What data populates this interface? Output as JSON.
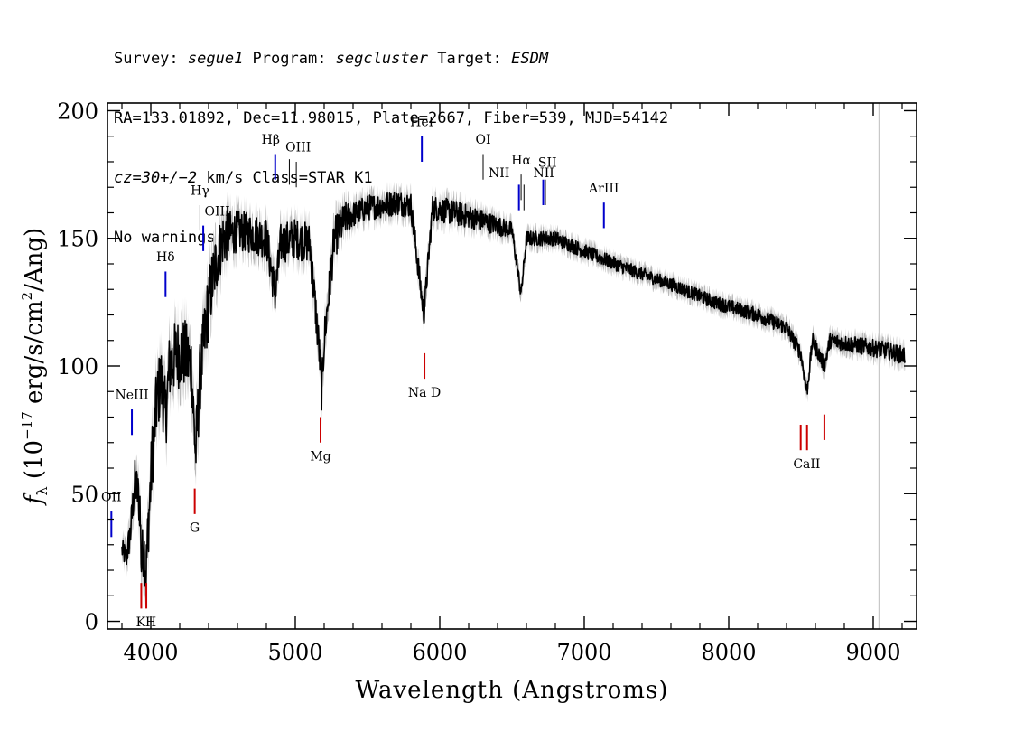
{
  "header": {
    "line1": {
      "survey_label": "Survey: ",
      "survey": "segue1",
      "program_label": " Program: ",
      "program": "segcluster",
      "target_label": " Target: ",
      "target": "ESDM"
    },
    "line2": "RA=133.01892, Dec=11.98015, Plate=2667, Fiber=539, MJD=54142",
    "line3": {
      "cz": "cz=30+/−2",
      "rest": " km/s Class=STAR K1"
    },
    "line4": "No warnings."
  },
  "chart_data": {
    "type": "line",
    "title": "",
    "xlabel": "Wavelength (Angstroms)",
    "ylabel_main": "f",
    "ylabel_sub": "λ",
    "ylabel_unit_a": " (10",
    "ylabel_exp": "−17",
    "ylabel_unit_b": " erg/s/cm",
    "ylabel_exp2": "2",
    "ylabel_unit_c": "/Ang)",
    "xlim": [
      3700,
      9300
    ],
    "ylim": [
      -3,
      203
    ],
    "x_ticks": [
      4000,
      5000,
      6000,
      7000,
      8000,
      9000
    ],
    "y_ticks": [
      0,
      50,
      100,
      150,
      200
    ],
    "grid": false,
    "series_color": "#000000",
    "error_color": "#b8b8b8",
    "vertical_marker": {
      "x": 9040,
      "color": "#c8c8c8"
    },
    "spectrum_anchors": [
      [
        3800,
        28
      ],
      [
        3830,
        25
      ],
      [
        3860,
        35
      ],
      [
        3890,
        55
      ],
      [
        3910,
        50
      ],
      [
        3925,
        45
      ],
      [
        3935,
        22
      ],
      [
        3950,
        30
      ],
      [
        3968,
        20
      ],
      [
        3985,
        40
      ],
      [
        4010,
        65
      ],
      [
        4040,
        85
      ],
      [
        4070,
        95
      ],
      [
        4102,
        80
      ],
      [
        4130,
        100
      ],
      [
        4180,
        105
      ],
      [
        4230,
        105
      ],
      [
        4280,
        100
      ],
      [
        4310,
        65
      ],
      [
        4340,
        95
      ],
      [
        4370,
        110
      ],
      [
        4400,
        125
      ],
      [
        4450,
        140
      ],
      [
        4500,
        150
      ],
      [
        4600,
        153
      ],
      [
        4700,
        152
      ],
      [
        4800,
        150
      ],
      [
        4861,
        128
      ],
      [
        4900,
        148
      ],
      [
        5000,
        150
      ],
      [
        5100,
        148
      ],
      [
        5167,
        105
      ],
      [
        5183,
        90
      ],
      [
        5200,
        110
      ],
      [
        5270,
        150
      ],
      [
        5350,
        158
      ],
      [
        5500,
        162
      ],
      [
        5700,
        164
      ],
      [
        5800,
        163
      ],
      [
        5890,
        120
      ],
      [
        5950,
        162
      ],
      [
        6100,
        160
      ],
      [
        6300,
        157
      ],
      [
        6500,
        153
      ],
      [
        6563,
        128
      ],
      [
        6600,
        150
      ],
      [
        6800,
        150
      ],
      [
        7000,
        145
      ],
      [
        7300,
        138
      ],
      [
        7600,
        132
      ],
      [
        7900,
        125
      ],
      [
        8200,
        120
      ],
      [
        8400,
        115
      ],
      [
        8498,
        105
      ],
      [
        8542,
        90
      ],
      [
        8580,
        110
      ],
      [
        8662,
        100
      ],
      [
        8700,
        110
      ],
      [
        8900,
        108
      ],
      [
        9100,
        106
      ],
      [
        9220,
        104
      ]
    ],
    "noise": [
      [
        3800,
        4
      ],
      [
        4000,
        14
      ],
      [
        4400,
        14
      ],
      [
        4600,
        8
      ],
      [
        5300,
        8
      ],
      [
        5400,
        5
      ],
      [
        6100,
        5
      ],
      [
        6600,
        3
      ],
      [
        7500,
        2.5
      ],
      [
        8500,
        3
      ],
      [
        9220,
        3.5
      ]
    ],
    "line_marks": [
      {
        "label": "OII",
        "x": 3727,
        "y0": 33,
        "y1": 43,
        "color": "#0000cc",
        "lx": 3727,
        "ly": 47
      },
      {
        "label": "NeIII",
        "x": 3869,
        "y0": 73,
        "y1": 83,
        "color": "#0000cc",
        "lx": 3869,
        "ly": 87
      },
      {
        "label": "Hδ",
        "x": 4102,
        "y0": 127,
        "y1": 137,
        "color": "#0000cc",
        "lx": 4102,
        "ly": 141
      },
      {
        "label": "Hγ",
        "x": 4340,
        "y0": 153,
        "y1": 163,
        "color": "#000000",
        "lx": 4340,
        "ly": 167
      },
      {
        "label": "OIII",
        "x": 4363,
        "y0": 145,
        "y1": 155,
        "color": "#0000cc",
        "lx": 4460,
        "ly": 159
      },
      {
        "label": "Hβ",
        "x": 4861,
        "y0": 173,
        "y1": 183,
        "color": "#0000cc",
        "lx": 4830,
        "ly": 187
      },
      {
        "label": "OIII",
        "x": 4959,
        "y0": 171,
        "y1": 181,
        "color": "#000000",
        "lx": 5020,
        "ly": 184
      },
      {
        "label": "OIII",
        "x": 5007,
        "y0": 170,
        "y1": 180,
        "color": "#000000",
        "lx": null,
        "ly": null
      },
      {
        "label": "HeI",
        "x": 5876,
        "y0": 180,
        "y1": 190,
        "color": "#0000cc",
        "lx": 5876,
        "ly": 194
      },
      {
        "label": "OI",
        "x": 6300,
        "y0": 173,
        "y1": 183,
        "color": "#000000",
        "lx": 6300,
        "ly": 187
      },
      {
        "label": "NII",
        "x": 6548,
        "y0": 161,
        "y1": 171,
        "color": "#0000cc",
        "lx": 6410,
        "ly": 174
      },
      {
        "label": "Hα",
        "x": 6563,
        "y0": 165,
        "y1": 175,
        "color": "#000000",
        "lx": 6563,
        "ly": 179
      },
      {
        "label": "NII",
        "x": 6583,
        "y0": 161,
        "y1": 171,
        "color": "#000000",
        "lx": 6720,
        "ly": 174
      },
      {
        "label": "SII",
        "x": 6716,
        "y0": 163,
        "y1": 173,
        "color": "#0000cc",
        "lx": 6745,
        "ly": 178
      },
      {
        "label": "SII",
        "x": 6731,
        "y0": 163,
        "y1": 173,
        "color": "#000000",
        "lx": null,
        "ly": null
      },
      {
        "label": "ArIII",
        "x": 7136,
        "y0": 154,
        "y1": 164,
        "color": "#0000cc",
        "lx": 7136,
        "ly": 168
      },
      {
        "label": "K",
        "x": 3934,
        "y0": 5,
        "y1": 15,
        "color": "#cc0000",
        "lx": 3930,
        "ly": -2
      },
      {
        "label": "H",
        "x": 3969,
        "y0": 5,
        "y1": 15,
        "color": "#cc0000",
        "lx": 4000,
        "ly": -2
      },
      {
        "label": "G",
        "x": 4304,
        "y0": 42,
        "y1": 52,
        "color": "#cc0000",
        "lx": 4304,
        "ly": 35
      },
      {
        "label": "Mg",
        "x": 5175,
        "y0": 70,
        "y1": 80,
        "color": "#cc0000",
        "lx": 5175,
        "ly": 63
      },
      {
        "label": "Na D",
        "x": 5894,
        "y0": 95,
        "y1": 105,
        "color": "#cc0000",
        "lx": 5894,
        "ly": 88
      },
      {
        "label": "CaII",
        "x": 8498,
        "y0": 67,
        "y1": 77,
        "color": "#cc0000",
        "lx": 8540,
        "ly": 60
      },
      {
        "label": "CaII",
        "x": 8542,
        "y0": 67,
        "y1": 77,
        "color": "#cc0000",
        "lx": null,
        "ly": null
      },
      {
        "label": "CaII",
        "x": 8662,
        "y0": 71,
        "y1": 81,
        "color": "#cc0000",
        "lx": null,
        "ly": null
      }
    ]
  }
}
